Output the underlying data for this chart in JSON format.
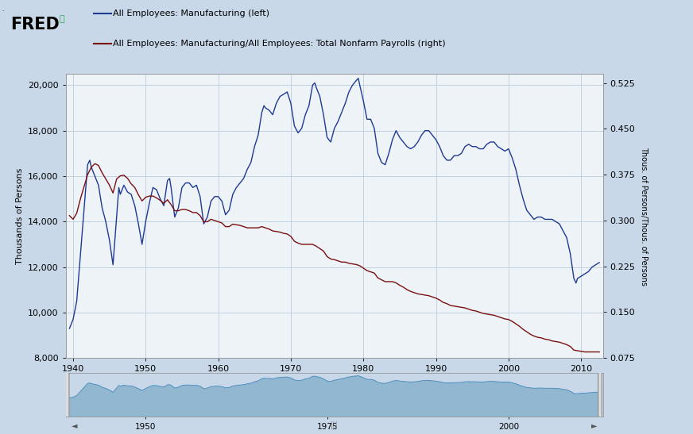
{
  "legend_blue": "All Employees: Manufacturing (left)",
  "legend_red": "All Employees: Manufacturing/All Employees: Total Nonfarm Payrolls (right)",
  "ylabel_left": "Thousands of Persons",
  "ylabel_right": "Thous. of Persons/Thous. of Persons",
  "ylim_left": [
    8000,
    20500
  ],
  "ylim_right": [
    0.075,
    0.54
  ],
  "yticks_left": [
    8000,
    10000,
    12000,
    14000,
    16000,
    18000,
    20000
  ],
  "yticks_right": [
    0.075,
    0.15,
    0.225,
    0.3,
    0.375,
    0.45,
    0.525
  ],
  "xlim": [
    1939.0,
    2013.0
  ],
  "xticks": [
    1940,
    1950,
    1960,
    1970,
    1980,
    1990,
    2000,
    2010
  ],
  "background_color": "#c8d8e8",
  "plot_bg_color": "#eef3f8",
  "grid_color": "#bbccdd",
  "blue_color": "#1f3a93",
  "red_color": "#7b1010",
  "nav_fill_color": "#7aaac8",
  "nav_bg_color": "#c8d8e8",
  "blue_line": [
    [
      1939.5,
      9300
    ],
    [
      1940.0,
      9700
    ],
    [
      1940.5,
      10500
    ],
    [
      1941.0,
      12500
    ],
    [
      1941.5,
      14500
    ],
    [
      1942.0,
      16500
    ],
    [
      1942.3,
      16700
    ],
    [
      1942.5,
      16400
    ],
    [
      1943.0,
      16000
    ],
    [
      1943.5,
      15600
    ],
    [
      1944.0,
      14600
    ],
    [
      1944.5,
      14000
    ],
    [
      1945.0,
      13200
    ],
    [
      1945.5,
      12100
    ],
    [
      1946.0,
      14200
    ],
    [
      1946.3,
      15500
    ],
    [
      1946.5,
      15200
    ],
    [
      1947.0,
      15600
    ],
    [
      1947.5,
      15300
    ],
    [
      1948.0,
      15200
    ],
    [
      1948.5,
      14700
    ],
    [
      1949.0,
      13900
    ],
    [
      1949.5,
      13000
    ],
    [
      1950.0,
      14000
    ],
    [
      1950.5,
      14800
    ],
    [
      1951.0,
      15500
    ],
    [
      1951.5,
      15400
    ],
    [
      1952.0,
      15000
    ],
    [
      1952.5,
      14700
    ],
    [
      1953.0,
      15800
    ],
    [
      1953.3,
      15900
    ],
    [
      1953.5,
      15500
    ],
    [
      1954.0,
      14200
    ],
    [
      1954.5,
      14600
    ],
    [
      1955.0,
      15500
    ],
    [
      1955.5,
      15700
    ],
    [
      1956.0,
      15700
    ],
    [
      1956.5,
      15500
    ],
    [
      1957.0,
      15600
    ],
    [
      1957.5,
      15100
    ],
    [
      1958.0,
      13900
    ],
    [
      1958.5,
      14200
    ],
    [
      1959.0,
      14900
    ],
    [
      1959.5,
      15100
    ],
    [
      1960.0,
      15100
    ],
    [
      1960.5,
      14900
    ],
    [
      1961.0,
      14300
    ],
    [
      1961.5,
      14500
    ],
    [
      1962.0,
      15200
    ],
    [
      1962.5,
      15500
    ],
    [
      1963.0,
      15700
    ],
    [
      1963.5,
      15900
    ],
    [
      1964.0,
      16300
    ],
    [
      1964.5,
      16600
    ],
    [
      1965.0,
      17300
    ],
    [
      1965.5,
      17800
    ],
    [
      1966.0,
      18800
    ],
    [
      1966.3,
      19100
    ],
    [
      1966.5,
      19000
    ],
    [
      1967.0,
      18900
    ],
    [
      1967.5,
      18700
    ],
    [
      1968.0,
      19200
    ],
    [
      1968.5,
      19500
    ],
    [
      1969.0,
      19600
    ],
    [
      1969.5,
      19700
    ],
    [
      1970.0,
      19200
    ],
    [
      1970.5,
      18200
    ],
    [
      1971.0,
      17900
    ],
    [
      1971.5,
      18100
    ],
    [
      1972.0,
      18700
    ],
    [
      1972.5,
      19100
    ],
    [
      1973.0,
      20000
    ],
    [
      1973.3,
      20100
    ],
    [
      1973.5,
      19900
    ],
    [
      1974.0,
      19500
    ],
    [
      1974.5,
      18700
    ],
    [
      1975.0,
      17700
    ],
    [
      1975.5,
      17500
    ],
    [
      1976.0,
      18100
    ],
    [
      1976.5,
      18400
    ],
    [
      1977.0,
      18800
    ],
    [
      1977.5,
      19200
    ],
    [
      1978.0,
      19700
    ],
    [
      1978.5,
      20000
    ],
    [
      1979.0,
      20200
    ],
    [
      1979.3,
      20300
    ],
    [
      1979.5,
      20000
    ],
    [
      1980.0,
      19300
    ],
    [
      1980.5,
      18500
    ],
    [
      1981.0,
      18500
    ],
    [
      1981.5,
      18100
    ],
    [
      1982.0,
      17000
    ],
    [
      1982.5,
      16600
    ],
    [
      1983.0,
      16500
    ],
    [
      1983.5,
      17000
    ],
    [
      1984.0,
      17600
    ],
    [
      1984.5,
      18000
    ],
    [
      1985.0,
      17700
    ],
    [
      1985.5,
      17500
    ],
    [
      1986.0,
      17300
    ],
    [
      1986.5,
      17200
    ],
    [
      1987.0,
      17300
    ],
    [
      1987.5,
      17500
    ],
    [
      1988.0,
      17800
    ],
    [
      1988.5,
      18000
    ],
    [
      1989.0,
      18000
    ],
    [
      1989.5,
      17800
    ],
    [
      1990.0,
      17600
    ],
    [
      1990.5,
      17300
    ],
    [
      1991.0,
      16900
    ],
    [
      1991.5,
      16700
    ],
    [
      1992.0,
      16700
    ],
    [
      1992.5,
      16900
    ],
    [
      1993.0,
      16900
    ],
    [
      1993.5,
      17000
    ],
    [
      1994.0,
      17300
    ],
    [
      1994.5,
      17400
    ],
    [
      1995.0,
      17300
    ],
    [
      1995.5,
      17300
    ],
    [
      1996.0,
      17200
    ],
    [
      1996.5,
      17200
    ],
    [
      1997.0,
      17400
    ],
    [
      1997.5,
      17500
    ],
    [
      1998.0,
      17500
    ],
    [
      1998.5,
      17300
    ],
    [
      1999.0,
      17200
    ],
    [
      1999.5,
      17100
    ],
    [
      2000.0,
      17200
    ],
    [
      2000.5,
      16800
    ],
    [
      2001.0,
      16300
    ],
    [
      2001.5,
      15600
    ],
    [
      2002.0,
      15000
    ],
    [
      2002.5,
      14500
    ],
    [
      2003.0,
      14300
    ],
    [
      2003.5,
      14100
    ],
    [
      2004.0,
      14200
    ],
    [
      2004.5,
      14200
    ],
    [
      2005.0,
      14100
    ],
    [
      2005.5,
      14100
    ],
    [
      2006.0,
      14100
    ],
    [
      2006.5,
      14000
    ],
    [
      2007.0,
      13900
    ],
    [
      2007.5,
      13600
    ],
    [
      2008.0,
      13300
    ],
    [
      2008.5,
      12600
    ],
    [
      2009.0,
      11500
    ],
    [
      2009.3,
      11300
    ],
    [
      2009.5,
      11500
    ],
    [
      2010.0,
      11600
    ],
    [
      2010.5,
      11700
    ],
    [
      2011.0,
      11800
    ],
    [
      2011.5,
      12000
    ],
    [
      2012.0,
      12100
    ],
    [
      2012.5,
      12200
    ]
  ],
  "red_line": [
    [
      1939.5,
      0.308
    ],
    [
      1940.0,
      0.302
    ],
    [
      1940.5,
      0.312
    ],
    [
      1941.0,
      0.335
    ],
    [
      1941.5,
      0.355
    ],
    [
      1942.0,
      0.375
    ],
    [
      1942.5,
      0.387
    ],
    [
      1943.0,
      0.393
    ],
    [
      1943.5,
      0.39
    ],
    [
      1944.0,
      0.378
    ],
    [
      1944.5,
      0.368
    ],
    [
      1945.0,
      0.358
    ],
    [
      1945.5,
      0.345
    ],
    [
      1946.0,
      0.368
    ],
    [
      1946.5,
      0.373
    ],
    [
      1947.0,
      0.374
    ],
    [
      1947.5,
      0.369
    ],
    [
      1948.0,
      0.36
    ],
    [
      1948.5,
      0.354
    ],
    [
      1949.0,
      0.342
    ],
    [
      1949.5,
      0.332
    ],
    [
      1950.0,
      0.338
    ],
    [
      1950.5,
      0.34
    ],
    [
      1951.0,
      0.34
    ],
    [
      1951.5,
      0.337
    ],
    [
      1952.0,
      0.333
    ],
    [
      1952.5,
      0.328
    ],
    [
      1953.0,
      0.334
    ],
    [
      1953.5,
      0.326
    ],
    [
      1954.0,
      0.316
    ],
    [
      1954.5,
      0.316
    ],
    [
      1955.0,
      0.318
    ],
    [
      1955.5,
      0.318
    ],
    [
      1956.0,
      0.316
    ],
    [
      1956.5,
      0.313
    ],
    [
      1957.0,
      0.313
    ],
    [
      1957.5,
      0.308
    ],
    [
      1958.0,
      0.298
    ],
    [
      1958.5,
      0.298
    ],
    [
      1959.0,
      0.302
    ],
    [
      1959.5,
      0.3
    ],
    [
      1960.0,
      0.298
    ],
    [
      1960.5,
      0.296
    ],
    [
      1961.0,
      0.29
    ],
    [
      1961.5,
      0.29
    ],
    [
      1962.0,
      0.294
    ],
    [
      1962.5,
      0.293
    ],
    [
      1963.0,
      0.292
    ],
    [
      1963.5,
      0.29
    ],
    [
      1964.0,
      0.288
    ],
    [
      1964.5,
      0.288
    ],
    [
      1965.0,
      0.288
    ],
    [
      1965.5,
      0.288
    ],
    [
      1966.0,
      0.29
    ],
    [
      1966.5,
      0.288
    ],
    [
      1967.0,
      0.286
    ],
    [
      1967.5,
      0.283
    ],
    [
      1968.0,
      0.282
    ],
    [
      1968.5,
      0.281
    ],
    [
      1969.0,
      0.279
    ],
    [
      1969.5,
      0.278
    ],
    [
      1970.0,
      0.274
    ],
    [
      1970.5,
      0.266
    ],
    [
      1971.0,
      0.263
    ],
    [
      1971.5,
      0.261
    ],
    [
      1972.0,
      0.261
    ],
    [
      1972.5,
      0.261
    ],
    [
      1973.0,
      0.261
    ],
    [
      1973.5,
      0.258
    ],
    [
      1974.0,
      0.254
    ],
    [
      1974.5,
      0.25
    ],
    [
      1975.0,
      0.241
    ],
    [
      1975.5,
      0.237
    ],
    [
      1976.0,
      0.236
    ],
    [
      1976.5,
      0.234
    ],
    [
      1977.0,
      0.232
    ],
    [
      1977.5,
      0.232
    ],
    [
      1978.0,
      0.23
    ],
    [
      1978.5,
      0.229
    ],
    [
      1979.0,
      0.228
    ],
    [
      1979.5,
      0.226
    ],
    [
      1980.0,
      0.222
    ],
    [
      1980.5,
      0.218
    ],
    [
      1981.0,
      0.216
    ],
    [
      1981.5,
      0.214
    ],
    [
      1982.0,
      0.206
    ],
    [
      1982.5,
      0.203
    ],
    [
      1983.0,
      0.2
    ],
    [
      1983.5,
      0.2
    ],
    [
      1984.0,
      0.2
    ],
    [
      1984.5,
      0.198
    ],
    [
      1985.0,
      0.194
    ],
    [
      1985.5,
      0.191
    ],
    [
      1986.0,
      0.187
    ],
    [
      1986.5,
      0.184
    ],
    [
      1987.0,
      0.182
    ],
    [
      1987.5,
      0.18
    ],
    [
      1988.0,
      0.179
    ],
    [
      1988.5,
      0.178
    ],
    [
      1989.0,
      0.177
    ],
    [
      1989.5,
      0.175
    ],
    [
      1990.0,
      0.173
    ],
    [
      1990.5,
      0.17
    ],
    [
      1991.0,
      0.166
    ],
    [
      1991.5,
      0.164
    ],
    [
      1992.0,
      0.161
    ],
    [
      1992.5,
      0.16
    ],
    [
      1993.0,
      0.159
    ],
    [
      1993.5,
      0.158
    ],
    [
      1994.0,
      0.157
    ],
    [
      1994.5,
      0.155
    ],
    [
      1995.0,
      0.153
    ],
    [
      1995.5,
      0.152
    ],
    [
      1996.0,
      0.15
    ],
    [
      1996.5,
      0.148
    ],
    [
      1997.0,
      0.147
    ],
    [
      1997.5,
      0.146
    ],
    [
      1998.0,
      0.145
    ],
    [
      1998.5,
      0.143
    ],
    [
      1999.0,
      0.141
    ],
    [
      1999.5,
      0.139
    ],
    [
      2000.0,
      0.138
    ],
    [
      2000.5,
      0.135
    ],
    [
      2001.0,
      0.131
    ],
    [
      2001.5,
      0.127
    ],
    [
      2002.0,
      0.122
    ],
    [
      2002.5,
      0.118
    ],
    [
      2003.0,
      0.114
    ],
    [
      2003.5,
      0.111
    ],
    [
      2004.0,
      0.109
    ],
    [
      2004.5,
      0.108
    ],
    [
      2005.0,
      0.106
    ],
    [
      2005.5,
      0.105
    ],
    [
      2006.0,
      0.103
    ],
    [
      2006.5,
      0.102
    ],
    [
      2007.0,
      0.101
    ],
    [
      2007.5,
      0.099
    ],
    [
      2008.0,
      0.097
    ],
    [
      2008.5,
      0.094
    ],
    [
      2009.0,
      0.088
    ],
    [
      2009.5,
      0.087
    ],
    [
      2010.0,
      0.086
    ],
    [
      2010.5,
      0.085
    ],
    [
      2011.0,
      0.085
    ],
    [
      2011.5,
      0.085
    ],
    [
      2012.0,
      0.085
    ],
    [
      2012.5,
      0.085
    ]
  ]
}
